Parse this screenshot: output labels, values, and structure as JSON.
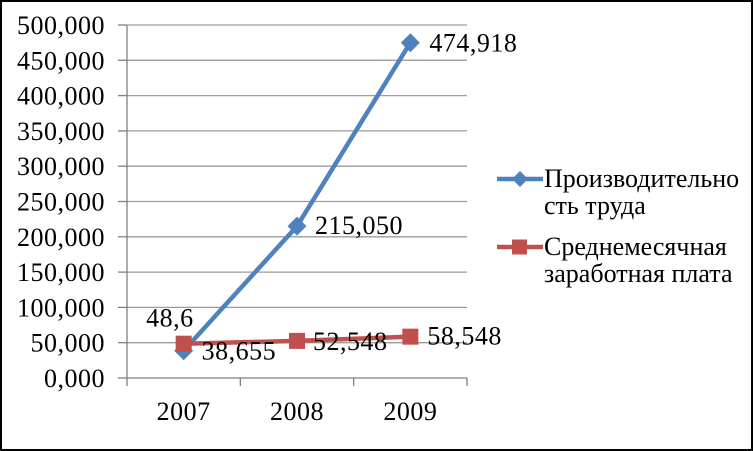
{
  "frame": {
    "background": "#FFFFFF",
    "border_color": "#000000"
  },
  "chart_data": {
    "type": "line",
    "categories": [
      "2007",
      "2008",
      "2009"
    ],
    "series": [
      {
        "name": "Производительность труда",
        "legend_lines": [
          "Производительно",
          "сть труда"
        ],
        "values": [
          38.655,
          215.05,
          474.918
        ],
        "point_labels": [
          "38,655",
          "215,050",
          "474,918"
        ],
        "color": "#4F81BD",
        "marker": "diamond"
      },
      {
        "name": "Среднемесячная заработная плата",
        "legend_lines": [
          "Среднемесячная",
          "заработная плата"
        ],
        "values": [
          48.6,
          52.548,
          58.548
        ],
        "point_labels": [
          "48,6",
          "52,548",
          "58,548"
        ],
        "color": "#C0504D",
        "marker": "square"
      }
    ],
    "y_axis": {
      "min": 0,
      "max": 500,
      "step": 50,
      "tick_labels": [
        "0,000",
        "50,000",
        "100,000",
        "150,000",
        "200,000",
        "250,000",
        "300,000",
        "350,000",
        "400,000",
        "450,000",
        "500,000"
      ]
    },
    "x_axis": {
      "tick_labels": [
        "2007",
        "2008",
        "2009"
      ]
    },
    "grid": true,
    "legend_position": "right",
    "axis_color": "#808080",
    "gridline_color": "#9C9C9C",
    "label_color": "#000000"
  }
}
